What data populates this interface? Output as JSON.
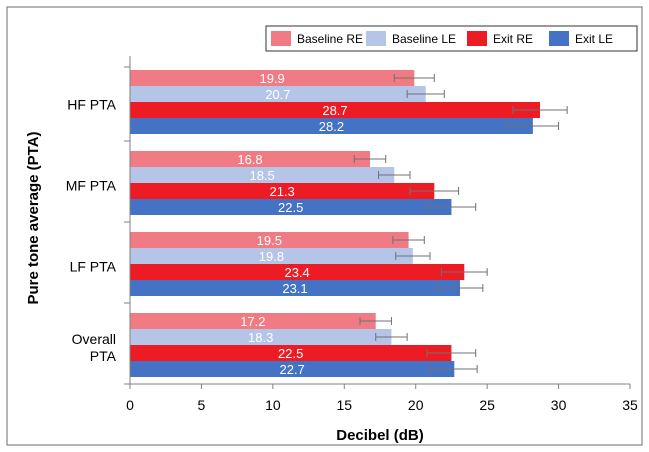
{
  "chart_data": {
    "type": "bar",
    "orientation": "horizontal",
    "categories": [
      "HF PTA",
      "MF PTA",
      "LF PTA",
      "Overall PTA"
    ],
    "category_lines": [
      [
        "HF PTA"
      ],
      [
        "MF PTA"
      ],
      [
        "LF PTA"
      ],
      [
        "Overall",
        "PTA"
      ]
    ],
    "series": [
      {
        "name": "Baseline RE",
        "color": "#f07b84",
        "values": [
          19.9,
          16.8,
          19.5,
          17.2
        ],
        "errors": [
          1.4,
          1.1,
          1.1,
          1.1
        ]
      },
      {
        "name": "Baseline LE",
        "color": "#b4c5e8",
        "values": [
          20.7,
          18.5,
          19.8,
          18.3
        ],
        "errors": [
          1.3,
          1.1,
          1.2,
          1.1
        ]
      },
      {
        "name": "Exit RE",
        "color": "#ed1c24",
        "values": [
          28.7,
          21.3,
          23.4,
          22.5
        ],
        "errors": [
          1.9,
          1.7,
          1.6,
          1.7
        ]
      },
      {
        "name": "Exit LE",
        "color": "#4472c4",
        "values": [
          28.2,
          22.5,
          23.1,
          22.7
        ],
        "errors": [
          1.8,
          1.7,
          1.6,
          1.6
        ]
      }
    ],
    "xlabel": "Decibel (dB)",
    "ylabel": "Pure tone average (PTA)",
    "xlim": [
      0,
      35
    ],
    "xticks": [
      "0",
      "5",
      "10",
      "15",
      "20",
      "25",
      "30",
      "35"
    ],
    "grid": false,
    "legend_position": "top"
  }
}
